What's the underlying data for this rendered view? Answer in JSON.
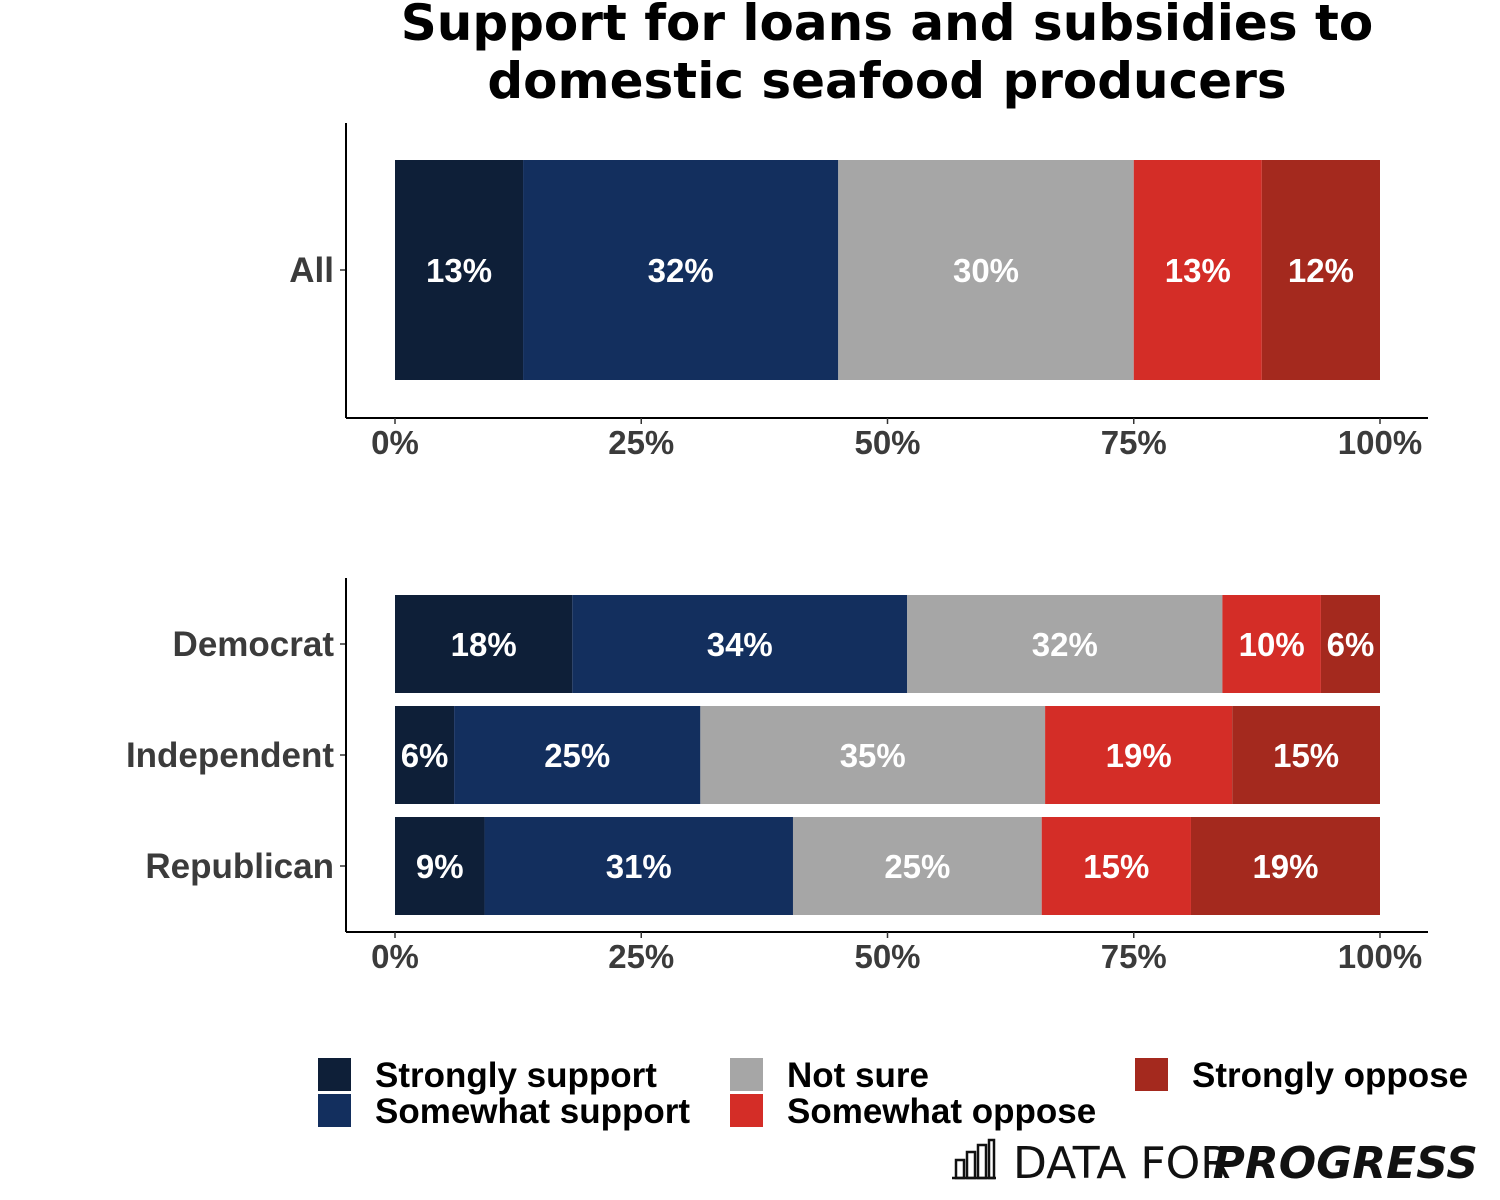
{
  "chart_data": {
    "type": "bar",
    "orientation": "horizontal-stacked-100",
    "title": [
      "Support for loans and subsidies to",
      "domestic seafood producers"
    ],
    "responses": [
      "Strongly support",
      "Somewhat support",
      "Not sure",
      "Somewhat oppose",
      "Strongly oppose"
    ],
    "colors": [
      "#0e1f38",
      "#132f5e",
      "#a6a6a6",
      "#d42d27",
      "#a4291e"
    ],
    "x_ticks": [
      "0%",
      "25%",
      "50%",
      "75%",
      "100%"
    ],
    "xlim": [
      0,
      100
    ],
    "panels": [
      {
        "name": "overall",
        "rows": [
          {
            "category": "All",
            "values": [
              13,
              32,
              30,
              13,
              12
            ],
            "labels": [
              "13%",
              "32%",
              "30%",
              "13%",
              "12%"
            ]
          }
        ]
      },
      {
        "name": "by-party",
        "rows": [
          {
            "category": "Democrat",
            "values": [
              18,
              34,
              32,
              10,
              6
            ],
            "labels": [
              "18%",
              "34%",
              "32%",
              "10%",
              "6%"
            ]
          },
          {
            "category": "Independent",
            "values": [
              6,
              25,
              35,
              19,
              15
            ],
            "labels": [
              "6%",
              "25%",
              "35%",
              "19%",
              "15%"
            ]
          },
          {
            "category": "Republican",
            "values": [
              9,
              31,
              25,
              15,
              19
            ],
            "labels": [
              "9%",
              "31%",
              "25%",
              "15%",
              "19%"
            ]
          }
        ]
      }
    ],
    "legend_position": "bottom"
  },
  "branding": {
    "text_regular": "DATA FOR",
    "text_bold": "PROGRESS",
    "logo_icon": "bar-chart-logo-icon"
  }
}
